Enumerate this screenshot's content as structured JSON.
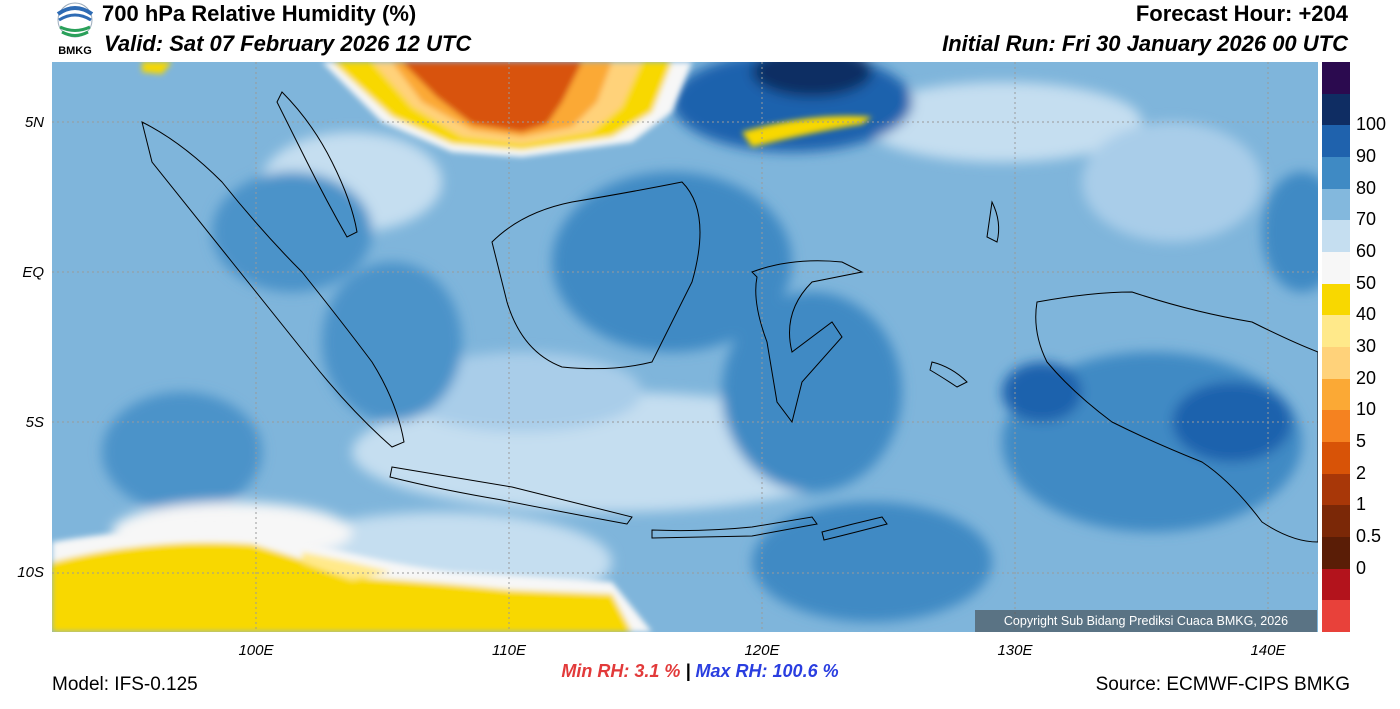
{
  "header": {
    "title": "700 hPa Relative Humidity (%)",
    "valid": "Valid: Sat 07 February 2026 12 UTC",
    "forecast_hour": "Forecast Hour: +204",
    "initial_run": "Initial Run: Fri 30 January 2026 00 UTC"
  },
  "logo": {
    "text": "BMKG",
    "icon": "bmkg-logo-icon"
  },
  "map": {
    "lat_labels": [
      "5N",
      "EQ",
      "5S",
      "10S"
    ],
    "lon_labels": [
      "100E",
      "110E",
      "120E",
      "130E",
      "140E"
    ],
    "copyright": "Copyright Sub Bidang Prediksi Cuaca BMKG, 2026"
  },
  "colorbar": {
    "labels": [
      "100",
      "90",
      "80",
      "70",
      "60",
      "50",
      "40",
      "30",
      "20",
      "10",
      "5",
      "2",
      "1",
      "0.5",
      "0"
    ],
    "colors": [
      "#2b0a4f",
      "#0f2d63",
      "#1f62ad",
      "#3f8ac4",
      "#83b8dd",
      "#c5def0",
      "#f7f7f7",
      "#f8d800",
      "#ffe98a",
      "#ffd27a",
      "#fba935",
      "#f58220",
      "#d85307",
      "#a83708",
      "#7b2807",
      "#5a1d06",
      "#b3131c",
      "#e8413a"
    ]
  },
  "stats": {
    "min_label": "Min RH:",
    "min_value": "3.1 %",
    "separator": "|",
    "max_label": "Max RH:",
    "max_value": "100.6 %"
  },
  "footer": {
    "model": "Model: IFS-0.125",
    "source": "Source: ECMWF-CIPS BMKG"
  }
}
